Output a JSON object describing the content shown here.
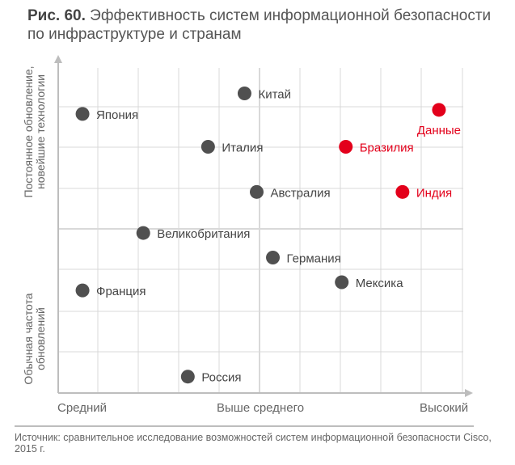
{
  "chart_data": {
    "type": "scatter",
    "title_prefix": "Рис. 60.",
    "title": "Эффективность систем информационной безопасности по инфраструктуре и странам",
    "x_axis": {
      "ticks": [
        "Средний",
        "Выше среднего",
        "Высокий"
      ]
    },
    "y_axis": {
      "upper_label": "Постоянное обновление, новейшие технологии",
      "lower_label": "Обычная частота обновлений"
    },
    "xlim": [
      0,
      10
    ],
    "ylim": [
      0,
      8
    ],
    "grid": true,
    "points": [
      {
        "label": "Китай",
        "x": 4.6,
        "y": 7.3,
        "highlight": false
      },
      {
        "label": "Япония",
        "x": 0.6,
        "y": 6.8,
        "highlight": false
      },
      {
        "label": "Данные",
        "x": 9.4,
        "y": 6.9,
        "highlight": true
      },
      {
        "label": "Италия",
        "x": 3.7,
        "y": 6.0,
        "highlight": false
      },
      {
        "label": "Бразилия",
        "x": 7.1,
        "y": 6.0,
        "highlight": true
      },
      {
        "label": "Австралия",
        "x": 4.9,
        "y": 4.9,
        "highlight": false
      },
      {
        "label": "Индия",
        "x": 8.5,
        "y": 4.9,
        "highlight": true
      },
      {
        "label": "Великобритания",
        "x": 2.1,
        "y": 3.9,
        "highlight": false
      },
      {
        "label": "Германия",
        "x": 5.3,
        "y": 3.3,
        "highlight": false
      },
      {
        "label": "Мексика",
        "x": 7.0,
        "y": 2.7,
        "highlight": false
      },
      {
        "label": "Франция",
        "x": 0.6,
        "y": 2.5,
        "highlight": false
      },
      {
        "label": "Россия",
        "x": 3.2,
        "y": 0.4,
        "highlight": false
      }
    ],
    "colors": {
      "normal": "#505050",
      "highlight": "#e3001b",
      "grid": "#d9d9d9",
      "axis": "#bdbdbd"
    }
  },
  "source": "Источник: сравнительное исследование возможностей систем информационной безопасности Cisco, 2015 г."
}
